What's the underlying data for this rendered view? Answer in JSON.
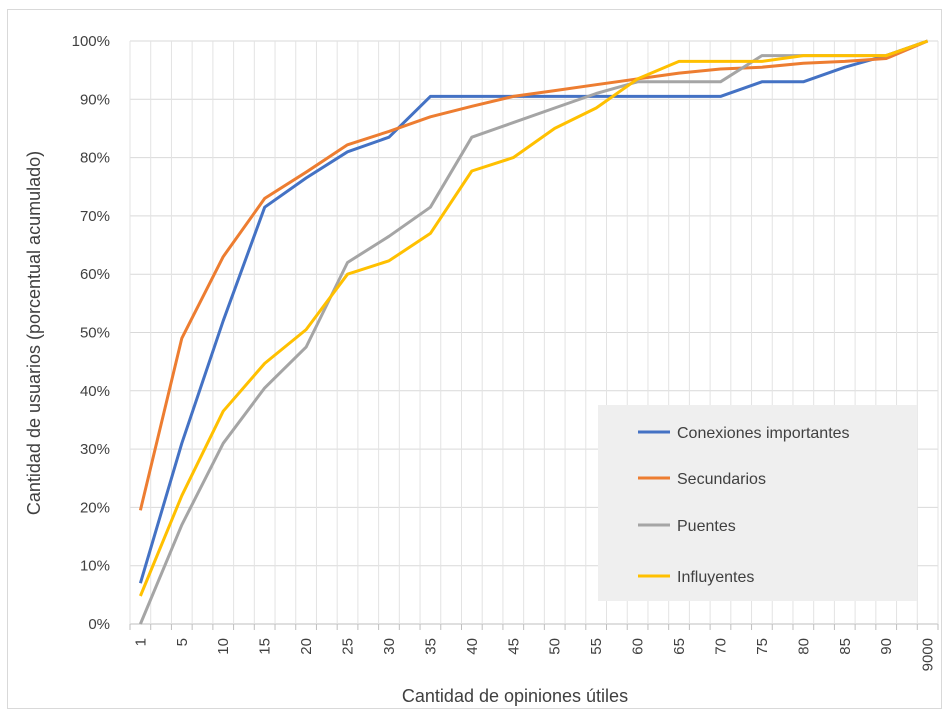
{
  "chart_data": {
    "type": "line",
    "title": "",
    "xlabel": "Cantidad de opiniones útiles",
    "ylabel": "Cantidad de usuarios (porcentual acumulado)",
    "categories": [
      "1",
      "",
      "5",
      "",
      "10",
      "",
      "15",
      "",
      "20",
      "",
      "25",
      "",
      "30",
      "",
      "35",
      "",
      "40",
      "",
      "45",
      "",
      "50",
      "",
      "55",
      "",
      "60",
      "",
      "65",
      "",
      "70",
      "",
      "75",
      "",
      "80",
      "",
      "85",
      "",
      "90",
      "",
      "9000"
    ],
    "x_tick_labels": [
      "1",
      "5",
      "10",
      "15",
      "20",
      "25",
      "30",
      "35",
      "40",
      "45",
      "50",
      "55",
      "60",
      "65",
      "70",
      "75",
      "80",
      "85",
      "90",
      "9000"
    ],
    "y_ticks": [
      "0%",
      "10%",
      "20%",
      "30%",
      "40%",
      "50%",
      "60%",
      "70%",
      "80%",
      "90%",
      "100%"
    ],
    "ylim": [
      0,
      100
    ],
    "grid": "vertical-and-horizontal",
    "legend": "lower-right",
    "series": [
      {
        "name": "Conexiones importantes",
        "color": "#4472C4",
        "points": [
          [
            1,
            7
          ],
          [
            5,
            31
          ],
          [
            10,
            52
          ],
          [
            15,
            71.5
          ],
          [
            20,
            76.5
          ],
          [
            25,
            81
          ],
          [
            30,
            83.5
          ],
          [
            35,
            90.5
          ],
          [
            40,
            90.5
          ],
          [
            45,
            90.5
          ],
          [
            50,
            90.5
          ],
          [
            55,
            90.5
          ],
          [
            60,
            90.5
          ],
          [
            65,
            90.5
          ],
          [
            70,
            90.5
          ],
          [
            75,
            93
          ],
          [
            80,
            93
          ],
          [
            85,
            95.5
          ],
          [
            90,
            97.5
          ],
          [
            9000,
            100
          ]
        ]
      },
      {
        "name": "Secundarios",
        "color": "#ED7D31",
        "points": [
          [
            1,
            19.5
          ],
          [
            5,
            49
          ],
          [
            10,
            63
          ],
          [
            15,
            73
          ],
          [
            20,
            77.5
          ],
          [
            25,
            82.2
          ],
          [
            30,
            84.5
          ],
          [
            35,
            87
          ],
          [
            40,
            88.8
          ],
          [
            45,
            90.5
          ],
          [
            50,
            91.5
          ],
          [
            55,
            92.5
          ],
          [
            60,
            93.5
          ],
          [
            65,
            94.5
          ],
          [
            70,
            95.2
          ],
          [
            75,
            95.5
          ],
          [
            80,
            96.2
          ],
          [
            85,
            96.5
          ],
          [
            90,
            97
          ],
          [
            9000,
            100
          ]
        ]
      },
      {
        "name": "Puentes",
        "color": "#A5A5A5",
        "points": [
          [
            1,
            0
          ],
          [
            5,
            17
          ],
          [
            10,
            31
          ],
          [
            15,
            40.5
          ],
          [
            20,
            47.5
          ],
          [
            25,
            62
          ],
          [
            30,
            66.5
          ],
          [
            35,
            71.5
          ],
          [
            40,
            83.5
          ],
          [
            45,
            86
          ],
          [
            50,
            88.5
          ],
          [
            55,
            91
          ],
          [
            60,
            93
          ],
          [
            65,
            93
          ],
          [
            70,
            93
          ],
          [
            75,
            97.5
          ],
          [
            80,
            97.5
          ],
          [
            85,
            97.5
          ],
          [
            90,
            97.5
          ],
          [
            9000,
            100
          ]
        ]
      },
      {
        "name": "Influyentes",
        "color": "#FFC000",
        "points": [
          [
            1,
            4.8
          ],
          [
            5,
            22
          ],
          [
            10,
            36.5
          ],
          [
            15,
            44.7
          ],
          [
            20,
            50.5
          ],
          [
            25,
            60
          ],
          [
            30,
            62.3
          ],
          [
            35,
            67
          ],
          [
            40,
            77.7
          ],
          [
            45,
            80
          ],
          [
            50,
            85
          ],
          [
            55,
            88.5
          ],
          [
            60,
            93.5
          ],
          [
            65,
            96.5
          ],
          [
            70,
            96.5
          ],
          [
            75,
            96.5
          ],
          [
            80,
            97.5
          ],
          [
            85,
            97.5
          ],
          [
            90,
            97.5
          ],
          [
            9000,
            100
          ]
        ]
      }
    ]
  }
}
